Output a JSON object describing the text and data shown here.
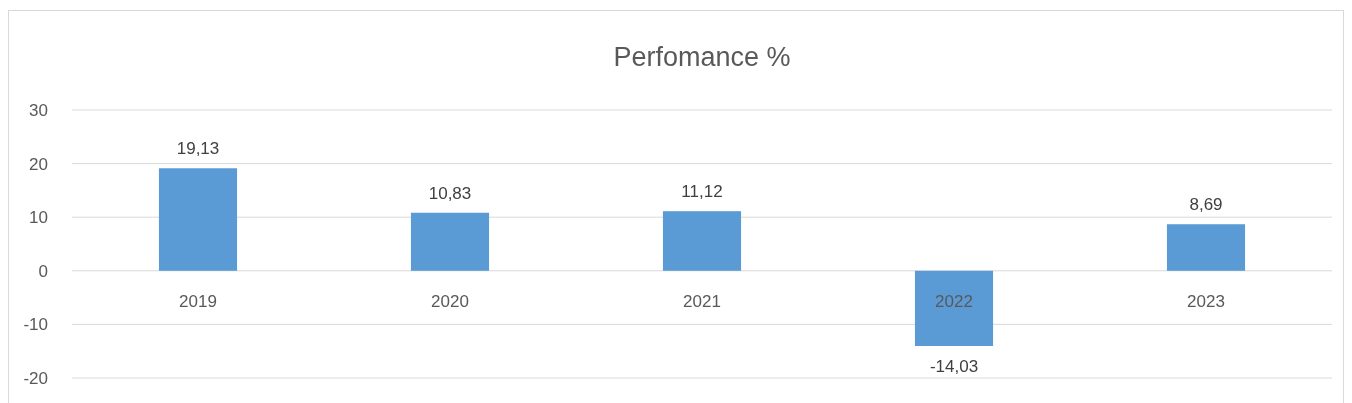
{
  "chart_data": {
    "type": "bar",
    "title": "Perfomance %",
    "categories": [
      "2019",
      "2020",
      "2021",
      "2022",
      "2023"
    ],
    "values": [
      19.13,
      10.83,
      11.12,
      -14.03,
      8.69
    ],
    "value_labels": [
      "19,13",
      "10,83",
      "11,12",
      "-14,03",
      "8,69"
    ],
    "color": "#5b9bd5",
    "ylim": [
      -20,
      30
    ],
    "yticks": [
      -20,
      -10,
      0,
      10,
      20,
      30
    ],
    "grid": "y"
  }
}
